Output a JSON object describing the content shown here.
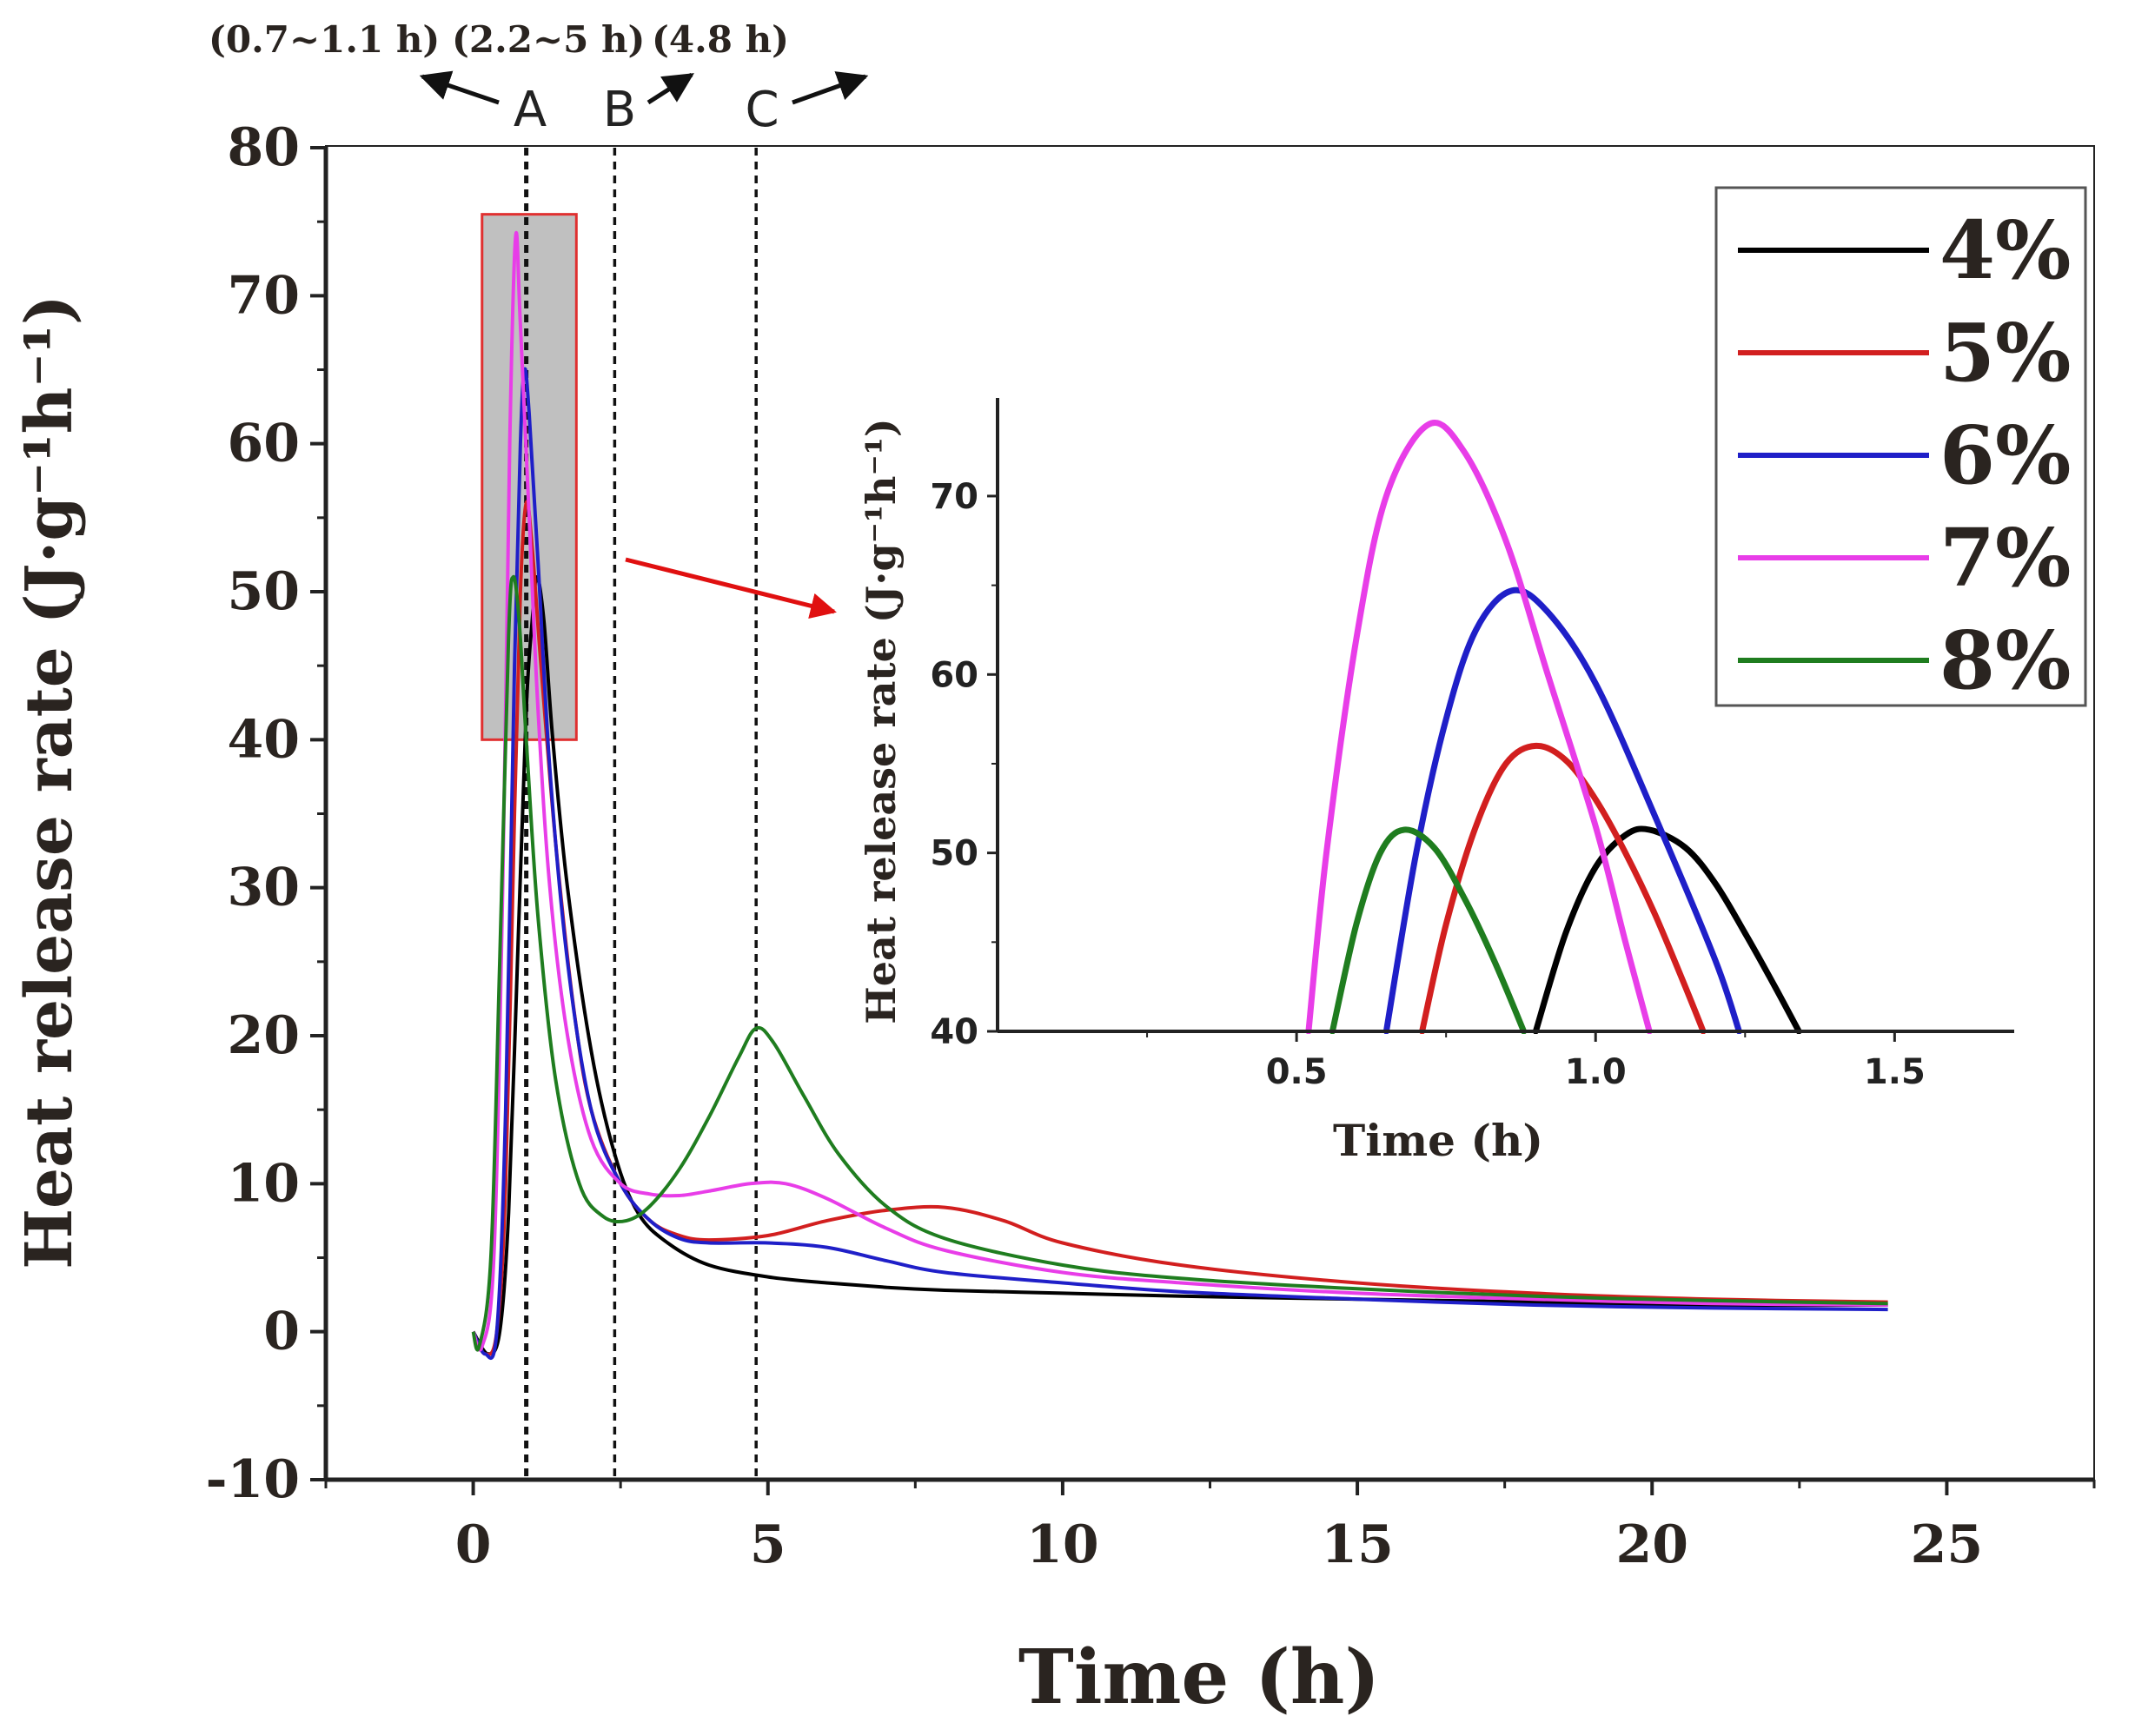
{
  "chart_data": [
    {
      "type": "line",
      "xlabel": "Time (h)",
      "ylabel": "Heat release rate (J·g⁻¹h⁻¹)",
      "xlim": [
        -2.5,
        27.5
      ],
      "ylim": [
        -10,
        80
      ],
      "xticks": [
        0,
        5,
        10,
        15,
        20,
        25
      ],
      "yticks": [
        -10,
        0,
        10,
        20,
        30,
        40,
        50,
        60,
        70,
        80
      ],
      "legend": {
        "placement": "top-right"
      },
      "annotations": {
        "markers": [
          {
            "letter": "A",
            "x": 0.9,
            "range": "(0.7~1.1 h)"
          },
          {
            "letter": "B",
            "x": 2.4,
            "range": "(2.2~5 h)"
          },
          {
            "letter": "C",
            "x": 4.8,
            "range": "(4.8 h)"
          }
        ],
        "zoom_box": {
          "x": [
            0.15,
            1.75
          ],
          "y": [
            40,
            75.5
          ]
        }
      },
      "series": [
        {
          "name": "4%",
          "color": "#000000",
          "points": [
            [
              0,
              0
            ],
            [
              0.25,
              -1.5
            ],
            [
              0.45,
              0
            ],
            [
              0.6,
              8
            ],
            [
              0.75,
              25
            ],
            [
              0.9,
              42
            ],
            [
              1.0,
              48
            ],
            [
              1.08,
              51
            ],
            [
              1.2,
              48
            ],
            [
              1.35,
              40
            ],
            [
              1.6,
              30
            ],
            [
              2.0,
              19
            ],
            [
              2.4,
              12
            ],
            [
              2.8,
              8
            ],
            [
              3.3,
              6
            ],
            [
              4.0,
              4.5
            ],
            [
              5.0,
              3.7
            ],
            [
              6.0,
              3.3
            ],
            [
              7.0,
              3.0
            ],
            [
              8.0,
              2.8
            ],
            [
              10.0,
              2.6
            ],
            [
              12.0,
              2.4
            ],
            [
              15.0,
              2.2
            ],
            [
              18.0,
              2.0
            ],
            [
              21.0,
              1.8
            ],
            [
              24.0,
              1.8
            ]
          ]
        },
        {
          "name": "5%",
          "color": "#d21f1f",
          "points": [
            [
              0,
              0
            ],
            [
              0.2,
              -1.5
            ],
            [
              0.4,
              0
            ],
            [
              0.55,
              10
            ],
            [
              0.7,
              35
            ],
            [
              0.8,
              50
            ],
            [
              0.9,
              56
            ],
            [
              1.0,
              53
            ],
            [
              1.15,
              45
            ],
            [
              1.4,
              33
            ],
            [
              1.7,
              22
            ],
            [
              2.0,
              15
            ],
            [
              2.5,
              10
            ],
            [
              3.0,
              7.5
            ],
            [
              3.5,
              6.5
            ],
            [
              4.0,
              6.2
            ],
            [
              5.0,
              6.5
            ],
            [
              6.0,
              7.5
            ],
            [
              7.0,
              8.2
            ],
            [
              8.0,
              8.4
            ],
            [
              9.0,
              7.5
            ],
            [
              10.0,
              6.0
            ],
            [
              12.0,
              4.5
            ],
            [
              15.0,
              3.3
            ],
            [
              18.0,
              2.6
            ],
            [
              21.0,
              2.2
            ],
            [
              24.0,
              2.0
            ]
          ]
        },
        {
          "name": "6%",
          "color": "#1f1fc8",
          "points": [
            [
              0,
              0
            ],
            [
              0.2,
              -1.5
            ],
            [
              0.4,
              0
            ],
            [
              0.55,
              15
            ],
            [
              0.7,
              45
            ],
            [
              0.8,
              60
            ],
            [
              0.87,
              65
            ],
            [
              0.95,
              62
            ],
            [
              1.1,
              52
            ],
            [
              1.3,
              38
            ],
            [
              1.6,
              25
            ],
            [
              2.0,
              15
            ],
            [
              2.5,
              10
            ],
            [
              3.0,
              7.5
            ],
            [
              3.5,
              6.3
            ],
            [
              4.0,
              6.0
            ],
            [
              5.0,
              6.0
            ],
            [
              6.0,
              5.7
            ],
            [
              7.0,
              4.8
            ],
            [
              8.0,
              4.0
            ],
            [
              10.0,
              3.3
            ],
            [
              12.0,
              2.7
            ],
            [
              15.0,
              2.2
            ],
            [
              18.0,
              1.8
            ],
            [
              21.0,
              1.6
            ],
            [
              24.0,
              1.5
            ]
          ]
        },
        {
          "name": "7%",
          "color": "#e83de8",
          "points": [
            [
              0,
              0
            ],
            [
              0.15,
              -1
            ],
            [
              0.35,
              5
            ],
            [
              0.5,
              30
            ],
            [
              0.62,
              60
            ],
            [
              0.72,
              74
            ],
            [
              0.8,
              68
            ],
            [
              0.95,
              55
            ],
            [
              1.1,
              42
            ],
            [
              1.3,
              30
            ],
            [
              1.6,
              20
            ],
            [
              2.0,
              13
            ],
            [
              2.5,
              10
            ],
            [
              3.0,
              9.3
            ],
            [
              3.5,
              9.2
            ],
            [
              4.0,
              9.5
            ],
            [
              4.7,
              10
            ],
            [
              5.3,
              10
            ],
            [
              6.0,
              9
            ],
            [
              7.0,
              7
            ],
            [
              8.0,
              5.5
            ],
            [
              10.0,
              4.0
            ],
            [
              12.0,
              3.3
            ],
            [
              15.0,
              2.6
            ],
            [
              18.0,
              2.2
            ],
            [
              21.0,
              1.9
            ],
            [
              24.0,
              1.8
            ]
          ]
        },
        {
          "name": "8%",
          "color": "#1f7d1f",
          "points": [
            [
              0,
              0
            ],
            [
              0.1,
              -1
            ],
            [
              0.3,
              5
            ],
            [
              0.45,
              25
            ],
            [
              0.6,
              47
            ],
            [
              0.68,
              51
            ],
            [
              0.78,
              48
            ],
            [
              0.9,
              40
            ],
            [
              1.1,
              28
            ],
            [
              1.4,
              17
            ],
            [
              1.8,
              10
            ],
            [
              2.2,
              7.8
            ],
            [
              2.6,
              7.5
            ],
            [
              3.0,
              8.5
            ],
            [
              3.5,
              11
            ],
            [
              4.0,
              14.5
            ],
            [
              4.5,
              18.5
            ],
            [
              4.8,
              20.5
            ],
            [
              5.1,
              19.5
            ],
            [
              5.6,
              16
            ],
            [
              6.2,
              12
            ],
            [
              7.0,
              8.5
            ],
            [
              8.0,
              6.3
            ],
            [
              10.0,
              4.5
            ],
            [
              12.0,
              3.6
            ],
            [
              15.0,
              2.9
            ],
            [
              18.0,
              2.4
            ],
            [
              21.0,
              2.1
            ],
            [
              24.0,
              1.9
            ]
          ]
        }
      ]
    },
    {
      "type": "line",
      "xlabel": "Time (h)",
      "ylabel": "Heat release rate (J·g⁻¹h⁻¹)",
      "xlim": [
        0.0,
        1.7
      ],
      "ylim": [
        40,
        75.5
      ],
      "xticks": [
        "0.5",
        "1.0",
        "1.5"
      ],
      "yticks": [
        "40",
        "50",
        "60",
        "70"
      ],
      "series": [
        {
          "name": "4%",
          "color": "#000000",
          "points": [
            [
              0.9,
              40
            ],
            [
              0.95,
              45.5
            ],
            [
              1.0,
              49.2
            ],
            [
              1.05,
              51.0
            ],
            [
              1.09,
              51.3
            ],
            [
              1.15,
              50.3
            ],
            [
              1.2,
              48.3
            ],
            [
              1.25,
              45.5
            ],
            [
              1.3,
              42.5
            ],
            [
              1.34,
              40
            ]
          ]
        },
        {
          "name": "5%",
          "color": "#d21f1f",
          "points": [
            [
              0.71,
              40
            ],
            [
              0.75,
              46
            ],
            [
              0.8,
              51.5
            ],
            [
              0.85,
              55
            ],
            [
              0.9,
              56
            ],
            [
              0.95,
              55.2
            ],
            [
              1.0,
              53
            ],
            [
              1.05,
              50
            ],
            [
              1.1,
              46.5
            ],
            [
              1.15,
              42.5
            ],
            [
              1.18,
              40
            ]
          ]
        },
        {
          "name": "6%",
          "color": "#1f1fc8",
          "points": [
            [
              0.65,
              40
            ],
            [
              0.7,
              50
            ],
            [
              0.75,
              57.5
            ],
            [
              0.8,
              62.5
            ],
            [
              0.86,
              64.7
            ],
            [
              0.92,
              63.5
            ],
            [
              1.0,
              59.5
            ],
            [
              1.1,
              52
            ],
            [
              1.2,
              44
            ],
            [
              1.24,
              40
            ]
          ]
        },
        {
          "name": "7%",
          "color": "#e83de8",
          "points": [
            [
              0.52,
              40
            ],
            [
              0.55,
              50
            ],
            [
              0.6,
              62
            ],
            [
              0.65,
              70
            ],
            [
              0.72,
              74
            ],
            [
              0.78,
              72.5
            ],
            [
              0.85,
              67.5
            ],
            [
              0.92,
              60
            ],
            [
              1.0,
              51.5
            ],
            [
              1.05,
              45
            ],
            [
              1.09,
              40
            ]
          ]
        },
        {
          "name": "8%",
          "color": "#1f7d1f",
          "points": [
            [
              0.56,
              40
            ],
            [
              0.6,
              46
            ],
            [
              0.64,
              50
            ],
            [
              0.68,
              51.3
            ],
            [
              0.73,
              50.3
            ],
            [
              0.78,
              47.5
            ],
            [
              0.83,
              44
            ],
            [
              0.88,
              40
            ]
          ]
        }
      ]
    }
  ]
}
